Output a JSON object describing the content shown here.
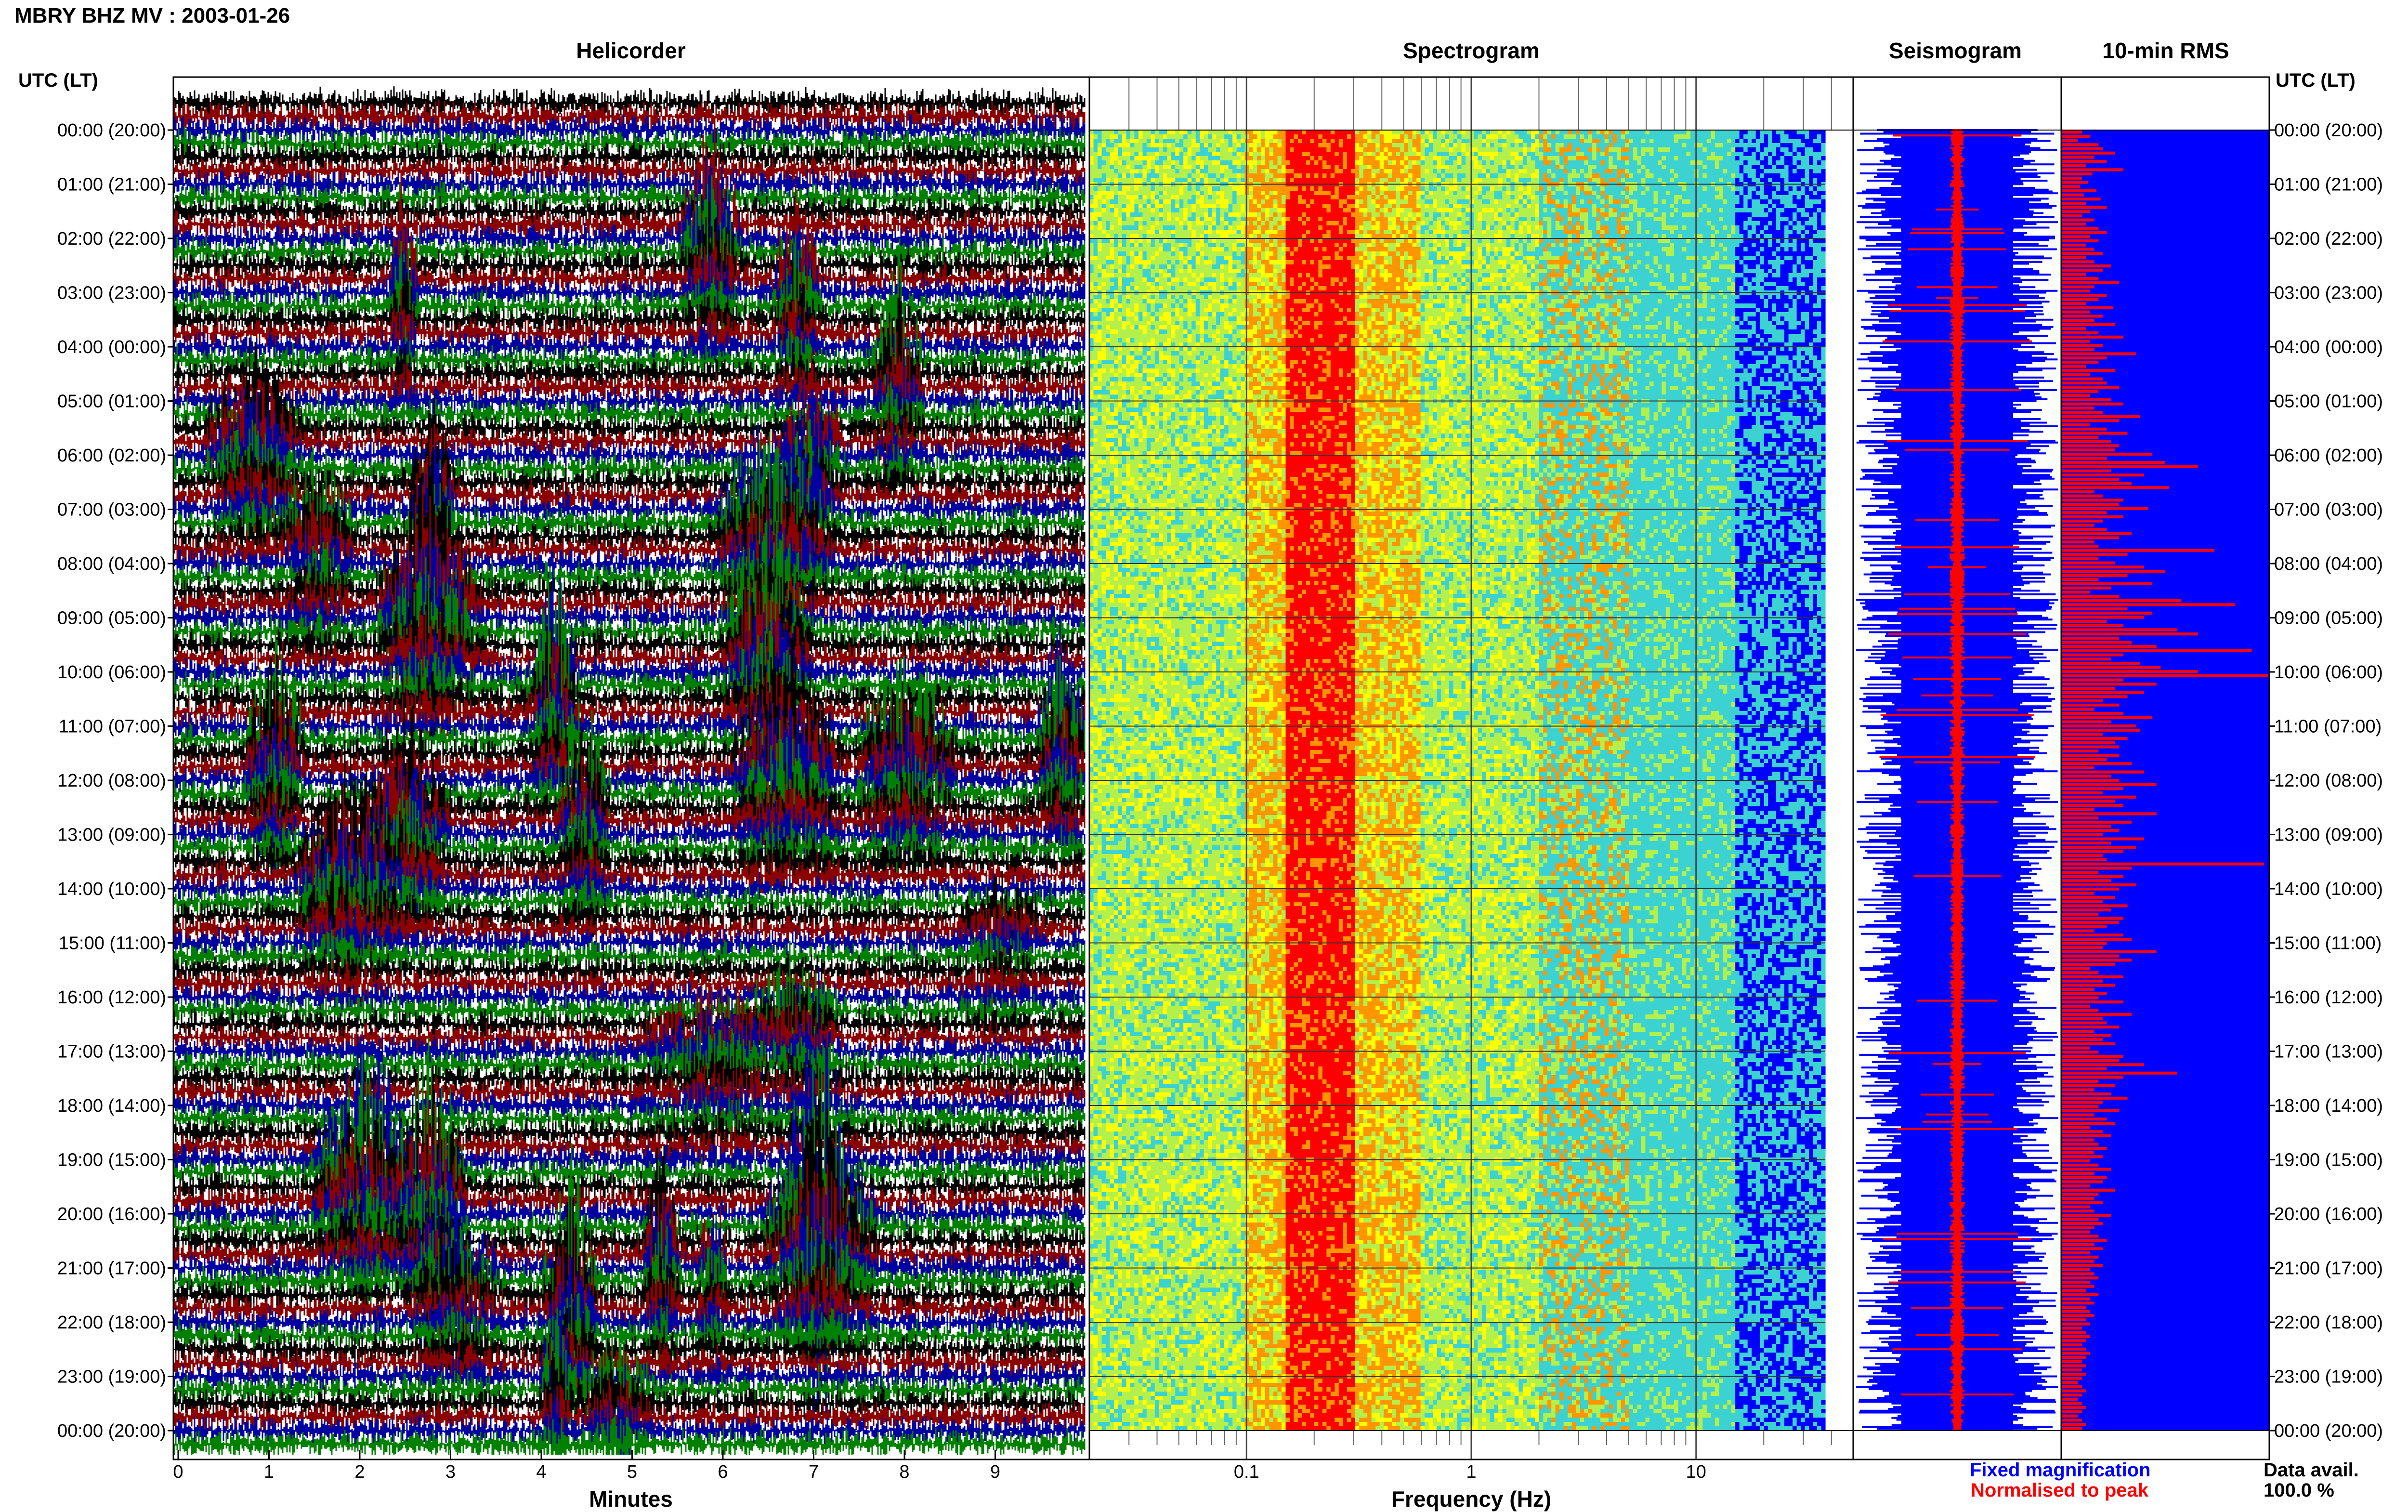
{
  "page_title": "MBRY BHZ MV : 2003-01-26",
  "panels": {
    "helicorder": "Helicorder",
    "spectrogram": "Spectrogram",
    "seismogram": "Seismogram",
    "rms": "10-min RMS"
  },
  "time_header_left": "UTC (LT)",
  "time_header_right": "UTC (LT)",
  "x_label_helicorder": "Minutes",
  "x_label_spectrogram": "Frequency (Hz)",
  "legend": {
    "fixed": "Fixed magnification",
    "normalised": "Normalised to peak",
    "fixed_color": "#0000ff",
    "normalised_color": "#ff0000"
  },
  "data_avail_label": "Data avail.",
  "data_avail_value": "100.0 %",
  "chart_data": [
    {
      "type": "line",
      "title": "Helicorder",
      "xlabel": "Minutes",
      "x_ticks": [
        "0",
        "1",
        "2",
        "3",
        "4",
        "5",
        "6",
        "7",
        "8",
        "9"
      ],
      "xlim": [
        0,
        10
      ],
      "trace_colors": [
        "#000000",
        "#8b0000",
        "#0000a0",
        "#008000"
      ],
      "hour_labels": [
        "00:00 (20:00)",
        "01:00 (21:00)",
        "02:00 (22:00)",
        "03:00 (23:00)",
        "04:00 (00:00)",
        "05:00 (01:00)",
        "06:00 (02:00)",
        "07:00 (03:00)",
        "08:00 (04:00)",
        "09:00 (05:00)",
        "10:00 (06:00)",
        "11:00 (07:00)",
        "12:00 (08:00)",
        "13:00 (09:00)",
        "14:00 (10:00)",
        "15:00 (11:00)",
        "16:00 (12:00)",
        "17:00 (13:00)",
        "18:00 (14:00)",
        "19:00 (15:00)",
        "20:00 (16:00)",
        "21:00 (17:00)",
        "22:00 (18:00)",
        "23:00 (19:00)",
        "00:00 (20:00)"
      ]
    },
    {
      "type": "heatmap",
      "title": "Spectrogram",
      "xlabel": "Frequency (Hz)",
      "x_scale": "log",
      "xlim": [
        0.02,
        50
      ],
      "x_ticks": [
        "0.1",
        "1",
        "10"
      ],
      "x_tick_values": [
        0.1,
        1,
        10
      ],
      "color_scale": [
        "#ffff00",
        "#b4f04c",
        "#3cd2d2",
        "#ff9600",
        "#ff0000",
        "#0000ff"
      ],
      "peak_band_hz": [
        0.15,
        0.3
      ],
      "secondary_band_hz": [
        2,
        5
      ]
    },
    {
      "type": "line",
      "title": "Seismogram",
      "series": [
        {
          "name": "Fixed magnification",
          "color": "#0000ff"
        },
        {
          "name": "Normalised to peak",
          "color": "#ff0000"
        }
      ]
    },
    {
      "type": "bar",
      "title": "10-min RMS",
      "orientation": "horizontal",
      "bar_color": "#ff0000",
      "background_color": "#0000ff",
      "values": [
        0.1,
        0.14,
        0.08,
        0.18,
        0.2,
        0.26,
        0.16,
        0.22,
        0.12,
        0.3,
        0.15,
        0.1,
        0.13,
        0.09,
        0.17,
        0.11,
        0.19,
        0.12,
        0.22,
        0.14,
        0.1,
        0.16,
        0.12,
        0.18,
        0.22,
        0.14,
        0.18,
        0.12,
        0.16,
        0.2,
        0.12,
        0.16,
        0.24,
        0.2,
        0.12,
        0.18,
        0.28,
        0.16,
        0.14,
        0.22,
        0.18,
        0.12,
        0.25,
        0.14,
        0.2,
        0.16,
        0.26,
        0.12,
        0.18,
        0.3,
        0.14,
        0.2,
        0.16,
        0.36,
        0.22,
        0.18,
        0.12,
        0.26,
        0.14,
        0.2,
        0.22,
        0.28,
        0.18,
        0.14,
        0.24,
        0.3,
        0.16,
        0.2,
        0.38,
        0.28,
        0.14,
        0.22,
        0.32,
        0.18,
        0.24,
        0.28,
        0.26,
        0.44,
        0.22,
        0.5,
        0.66,
        0.24,
        0.4,
        0.28,
        0.34,
        0.52,
        0.16,
        0.2,
        0.3,
        0.28,
        0.42,
        0.22,
        0.3,
        0.2,
        0.16,
        0.22,
        0.34,
        0.28,
        0.16,
        0.18,
        0.74,
        0.32,
        0.18,
        0.26,
        0.4,
        0.5,
        0.32,
        0.18,
        0.44,
        0.24,
        0.14,
        0.28,
        0.58,
        0.84,
        0.32,
        0.44,
        0.4,
        0.22,
        0.3,
        0.56,
        0.66,
        0.28,
        0.34,
        0.46,
        0.92,
        0.3,
        0.24,
        0.38,
        0.48,
        0.66,
        1.0,
        0.3,
        0.46,
        0.26,
        0.4,
        0.32,
        0.2,
        0.28,
        0.16,
        0.3,
        0.44,
        0.24,
        0.36,
        0.38,
        0.2,
        0.32,
        0.26,
        0.28,
        0.18,
        0.28,
        0.22,
        0.34,
        0.16,
        0.4,
        0.24,
        0.28,
        0.46,
        0.3,
        0.2,
        0.36,
        0.26,
        0.3,
        0.16,
        0.46,
        0.18,
        0.34,
        0.24,
        0.28,
        0.2,
        0.4,
        0.24,
        0.36,
        0.3,
        0.2,
        0.22,
        0.98,
        0.34,
        0.18,
        0.3,
        0.24,
        0.36,
        0.28,
        0.16,
        0.26,
        0.2,
        0.32,
        0.24,
        0.18,
        0.3,
        0.28,
        0.22,
        0.16,
        0.3,
        0.34,
        0.22,
        0.2,
        0.46,
        0.28,
        0.34,
        0.26,
        0.14,
        0.18,
        0.3,
        0.2,
        0.26,
        0.16,
        0.22,
        0.18,
        0.3,
        0.14,
        0.18,
        0.34,
        0.2,
        0.22,
        0.28,
        0.16,
        0.24,
        0.2,
        0.26,
        0.14,
        0.18,
        0.3,
        0.28,
        0.4,
        0.22,
        0.56,
        0.3,
        0.18,
        0.26,
        0.16,
        0.24,
        0.32,
        0.2,
        0.18,
        0.28,
        0.16,
        0.22,
        0.26,
        0.14,
        0.2,
        0.24,
        0.16,
        0.18,
        0.22,
        0.16,
        0.2,
        0.14,
        0.18,
        0.24,
        0.16,
        0.22,
        0.2,
        0.14,
        0.26,
        0.18,
        0.16,
        0.2,
        0.14,
        0.16,
        0.24,
        0.18,
        0.2,
        0.16,
        0.14,
        0.18,
        0.22,
        0.16,
        0.2,
        0.14,
        0.18,
        0.16,
        0.2,
        0.14,
        0.16,
        0.18,
        0.14,
        0.16,
        0.12,
        0.18,
        0.14,
        0.16,
        0.12,
        0.14,
        0.16,
        0.12,
        0.14,
        0.1,
        0.12,
        0.14,
        0.12,
        0.1,
        0.12,
        0.14,
        0.12,
        0.1,
        0.12,
        0.1,
        0.12,
        0.1,
        0.08,
        0.1,
        0.12,
        0.1,
        0.08,
        0.1,
        0.12,
        0.1,
        0.08,
        0.1,
        0.12,
        0.1
      ]
    }
  ]
}
